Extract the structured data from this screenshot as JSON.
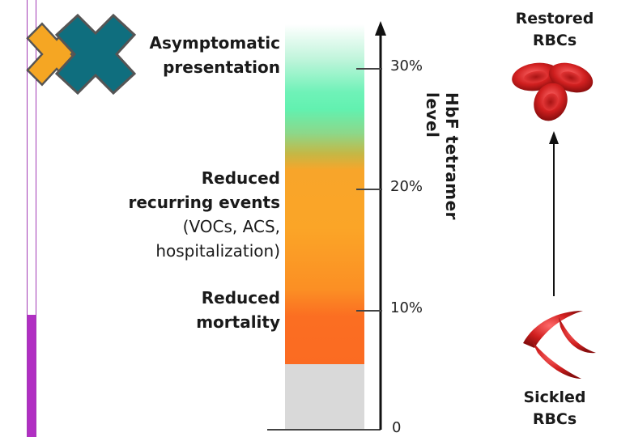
{
  "progress": {
    "fraction": 0.28,
    "color": "#b12fc3"
  },
  "logo": {
    "icon": "double-x-logo-icon",
    "colors": {
      "front": "#0f6e7e",
      "back": "#f5a623",
      "outline": "#555555"
    }
  },
  "labels": {
    "asymptomatic_line1": "Asymptomatic",
    "asymptomatic_line2": "presentation",
    "recurring_line1": "Reduced",
    "recurring_line2": "recurring events",
    "recurring_sub1": "(VOCs, ACS,",
    "recurring_sub2": "hospitalization)",
    "mortality_line1": "Reduced",
    "mortality_line2": "mortality"
  },
  "axis": {
    "title": "HbF tetramer level",
    "ticks": [
      "30%",
      "20%",
      "10%",
      "0"
    ]
  },
  "rbc": {
    "restored_line1": "Restored",
    "restored_line2": "RBCs",
    "sickled_line1": "Sickled",
    "sickled_line2": "RBCs",
    "color": "#c81e1e"
  }
}
